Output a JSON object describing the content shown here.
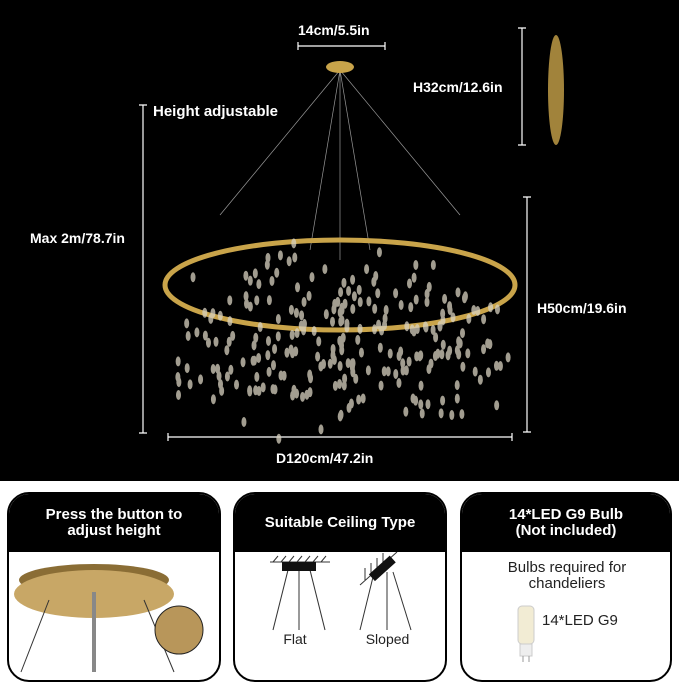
{
  "dimensions": {
    "canopy": "14cm/5.5in",
    "height_adjustable": "Height adjustable",
    "max_height": "Max 2m/78.7in",
    "crystal_height": "H32cm/12.6in",
    "body_height": "H50cm/19.6in",
    "diameter": "D120cm/47.2in"
  },
  "panels": [
    {
      "title_line1": "Press the button to",
      "title_line2": "adjust height"
    },
    {
      "title": "Suitable Ceiling Type",
      "options": [
        "Flat",
        "Sloped"
      ]
    },
    {
      "title_line1": "14*LED G9 Bulb",
      "title_line2": "(Not included)",
      "note": "Bulbs required for chandeliers",
      "bulb_label": "14*LED G9"
    }
  ],
  "colors": {
    "background": "#000000",
    "gold": "#c9a44a",
    "text": "#ffffff"
  }
}
